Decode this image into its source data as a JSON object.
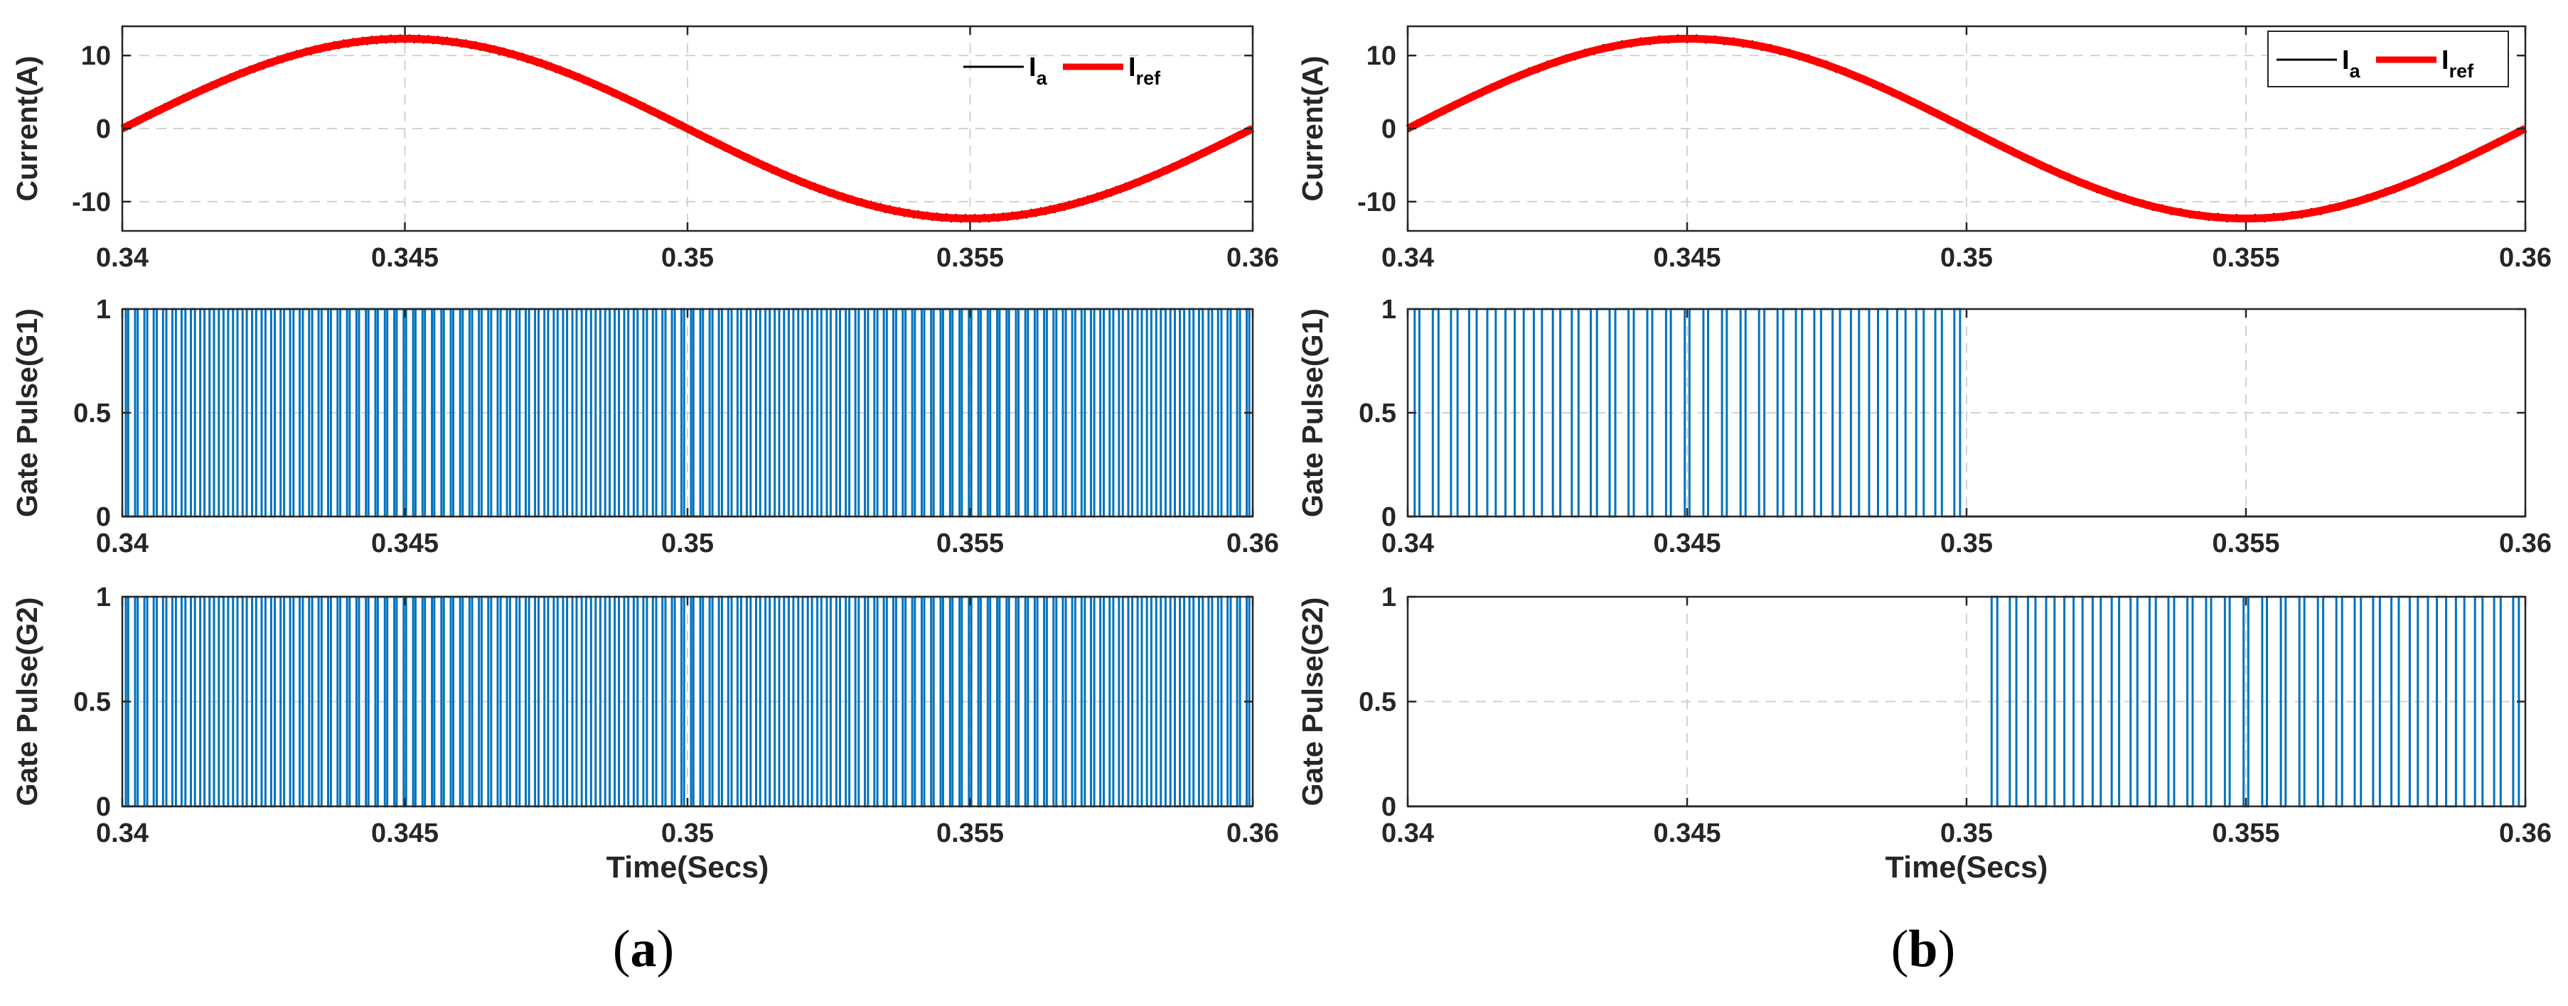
{
  "chart_data": [
    {
      "panel": "a",
      "type": "line",
      "ylabel": "Current(A)",
      "xlabel": "",
      "xlim": [
        0.34,
        0.36
      ],
      "ylim": [
        -14,
        14
      ],
      "xticks": [
        "0.34",
        "0.345",
        "0.35",
        "0.355",
        "0.36"
      ],
      "yticks": [
        "10",
        "0",
        "-10"
      ],
      "grid": true,
      "legend_position": "top-right",
      "legend_boxed": false,
      "series": [
        {
          "name": "Ia",
          "label_main": "I",
          "label_sub": "a",
          "color": "#000000",
          "amplitude": 12.3,
          "frequency_hz": 50,
          "ripple": 1.0,
          "switching_periods": 120
        },
        {
          "name": "Iref",
          "label_main": "I",
          "label_sub": "ref",
          "color": "#ff0000",
          "amplitude": 12.3,
          "frequency_hz": 50
        }
      ]
    },
    {
      "panel": "a",
      "type": "line",
      "ylabel": "Gate Pulse(G1)",
      "xlabel": "",
      "xlim": [
        0.34,
        0.36
      ],
      "ylim": [
        0,
        1
      ],
      "xticks": [
        "0.34",
        "0.345",
        "0.35",
        "0.355",
        "0.36"
      ],
      "yticks": [
        "1",
        "0.5",
        "0"
      ],
      "grid": true,
      "series": [
        {
          "name": "G1",
          "color": "#0072bd",
          "on_value": 1,
          "off_value": 0,
          "switching_periods": 120,
          "active_from": 0.34,
          "active_to": 0.36
        }
      ]
    },
    {
      "panel": "a",
      "type": "line",
      "ylabel": "Gate Pulse(G2)",
      "xlabel": "Time(Secs)",
      "xlim": [
        0.34,
        0.36
      ],
      "ylim": [
        0,
        1
      ],
      "xticks": [
        "0.34",
        "0.345",
        "0.35",
        "0.355",
        "0.36"
      ],
      "yticks": [
        "1",
        "0.5",
        "0"
      ],
      "grid": true,
      "series": [
        {
          "name": "G2",
          "color": "#0072bd",
          "on_value": 1,
          "off_value": 0,
          "switching_periods": 120,
          "active_from": 0.34,
          "active_to": 0.36
        }
      ]
    },
    {
      "panel": "b",
      "type": "line",
      "ylabel": "Current(A)",
      "xlabel": "",
      "xlim": [
        0.34,
        0.36
      ],
      "ylim": [
        -14,
        14
      ],
      "xticks": [
        "0.34",
        "0.345",
        "0.35",
        "0.355",
        "0.36"
      ],
      "yticks": [
        "10",
        "0",
        "-10"
      ],
      "grid": true,
      "legend_position": "top-right",
      "legend_boxed": true,
      "series": [
        {
          "name": "Ia",
          "label_main": "I",
          "label_sub": "a",
          "color": "#000000",
          "amplitude": 12.3,
          "frequency_hz": 50,
          "ripple": 1.0,
          "switching_periods": 60
        },
        {
          "name": "Iref",
          "label_main": "I",
          "label_sub": "ref",
          "color": "#ff0000",
          "amplitude": 12.3,
          "frequency_hz": 50
        }
      ]
    },
    {
      "panel": "b",
      "type": "line",
      "ylabel": "Gate Pulse(G1)",
      "xlabel": "",
      "xlim": [
        0.34,
        0.36
      ],
      "ylim": [
        0,
        1
      ],
      "xticks": [
        "0.34",
        "0.345",
        "0.35",
        "0.355",
        "0.36"
      ],
      "yticks": [
        "1",
        "0.5",
        "0"
      ],
      "grid": true,
      "series": [
        {
          "name": "G1",
          "color": "#0072bd",
          "on_value": 1,
          "off_value": 0,
          "switching_periods": 60,
          "active_from": 0.34,
          "active_to": 0.3497
        }
      ]
    },
    {
      "panel": "b",
      "type": "line",
      "ylabel": "Gate Pulse(G2)",
      "xlabel": "Time(Secs)",
      "xlim": [
        0.34,
        0.36
      ],
      "ylim": [
        0,
        1
      ],
      "xticks": [
        "0.34",
        "0.345",
        "0.35",
        "0.355",
        "0.36"
      ],
      "yticks": [
        "1",
        "0.5",
        "0"
      ],
      "grid": true,
      "series": [
        {
          "name": "G2",
          "color": "#0072bd",
          "on_value": 1,
          "off_value": 0,
          "switching_periods": 60,
          "active_from": 0.3503,
          "active_to": 0.3598
        }
      ]
    }
  ],
  "captions": [
    {
      "open": "(",
      "letter": "a",
      "close": ")"
    },
    {
      "open": "(",
      "letter": "b",
      "close": ")"
    }
  ]
}
